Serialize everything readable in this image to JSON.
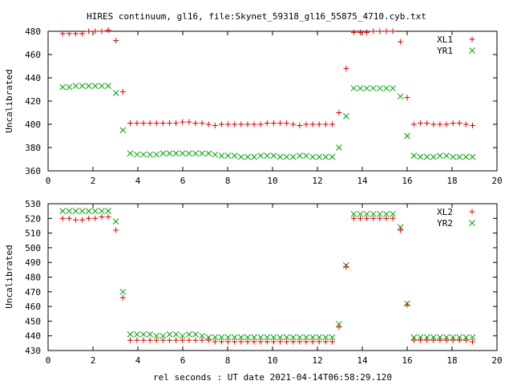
{
  "title": "HIRES continuum, gl16, file:Skynet_59318_gl16_55875_4710.cyb.txt",
  "chart_data": [
    {
      "type": "scatter",
      "title": "HIRES continuum, gl16, file:Skynet_59318_gl16_55875_4710.cyb.txt",
      "xlabel": "",
      "ylabel": "Uncalibrated",
      "xlim": [
        0,
        20
      ],
      "ylim": [
        360,
        480
      ],
      "xticks": [
        0,
        2,
        4,
        6,
        8,
        10,
        12,
        14,
        16,
        18,
        20
      ],
      "yticks": [
        360,
        380,
        400,
        420,
        440,
        460,
        480
      ],
      "grid": false,
      "legend": "top-right",
      "series": [
        {
          "name": "XL1",
          "marker": "plus",
          "color": "#dd0000",
          "x": [
            0.65,
            0.94,
            1.23,
            1.52,
            1.81,
            2.1,
            2.39,
            2.68,
            3.02,
            3.33,
            3.66,
            3.96,
            4.25,
            4.54,
            4.83,
            5.12,
            5.41,
            5.7,
            5.99,
            6.28,
            6.57,
            6.86,
            7.15,
            7.44,
            7.73,
            8.02,
            8.31,
            8.6,
            8.89,
            9.18,
            9.47,
            9.76,
            10.05,
            10.34,
            10.63,
            10.92,
            11.21,
            11.5,
            11.79,
            12.08,
            12.37,
            12.66,
            12.96,
            13.28,
            13.62,
            13.91,
            14.2,
            14.49,
            14.78,
            15.07,
            15.36,
            15.7,
            16.0,
            16.3,
            16.59,
            16.88,
            17.17,
            17.46,
            17.75,
            18.04,
            18.33,
            18.62,
            18.91
          ],
          "y": [
            478,
            478,
            478,
            478,
            480,
            480,
            480,
            481,
            472,
            428,
            401,
            401,
            401,
            401,
            401,
            401,
            401,
            401,
            402,
            402,
            401,
            401,
            400,
            399,
            400,
            400,
            400,
            400,
            400,
            400,
            400,
            401,
            401,
            401,
            401,
            400,
            399,
            400,
            400,
            400,
            400,
            400,
            410,
            448,
            479,
            479,
            479,
            480,
            480,
            480,
            480,
            471,
            423,
            400,
            401,
            401,
            400,
            400,
            400,
            401,
            401,
            400,
            399
          ]
        },
        {
          "name": "YR1",
          "marker": "cross",
          "color": "#00a000",
          "x": [
            0.65,
            0.94,
            1.23,
            1.52,
            1.81,
            2.1,
            2.39,
            2.68,
            3.02,
            3.33,
            3.66,
            3.96,
            4.25,
            4.54,
            4.83,
            5.12,
            5.41,
            5.7,
            5.99,
            6.28,
            6.57,
            6.86,
            7.15,
            7.44,
            7.73,
            8.02,
            8.31,
            8.6,
            8.89,
            9.18,
            9.47,
            9.76,
            10.05,
            10.34,
            10.63,
            10.92,
            11.21,
            11.5,
            11.79,
            12.08,
            12.37,
            12.66,
            12.96,
            13.28,
            13.62,
            13.91,
            14.2,
            14.49,
            14.78,
            15.07,
            15.36,
            15.7,
            16.0,
            16.3,
            16.59,
            16.88,
            17.17,
            17.46,
            17.75,
            18.04,
            18.33,
            18.62,
            18.91
          ],
          "y": [
            432,
            432,
            433,
            433,
            433,
            433,
            433,
            433,
            427,
            395,
            375,
            374,
            374,
            374,
            374,
            375,
            375,
            375,
            375,
            375,
            375,
            375,
            375,
            374,
            373,
            373,
            373,
            372,
            372,
            372,
            373,
            373,
            373,
            372,
            372,
            372,
            373,
            373,
            372,
            372,
            372,
            372,
            380,
            407,
            431,
            431,
            431,
            431,
            431,
            431,
            431,
            424,
            390,
            373,
            372,
            372,
            372,
            373,
            373,
            372,
            372,
            372,
            372
          ]
        }
      ]
    },
    {
      "type": "scatter",
      "title": "",
      "xlabel": "rel seconds : UT date 2021-04-14T06:58:29.120",
      "ylabel": "Uncalibrated",
      "xlim": [
        0,
        20
      ],
      "ylim": [
        430,
        530
      ],
      "xticks": [
        0,
        2,
        4,
        6,
        8,
        10,
        12,
        14,
        16,
        18,
        20
      ],
      "yticks": [
        430,
        440,
        450,
        460,
        470,
        480,
        490,
        500,
        510,
        520,
        530
      ],
      "grid": false,
      "legend": "top-right",
      "series": [
        {
          "name": "XL2",
          "marker": "plus",
          "color": "#dd0000",
          "x": [
            0.65,
            0.94,
            1.23,
            1.52,
            1.81,
            2.1,
            2.39,
            2.68,
            3.02,
            3.33,
            3.66,
            3.96,
            4.25,
            4.54,
            4.83,
            5.12,
            5.41,
            5.7,
            5.99,
            6.28,
            6.57,
            6.86,
            7.15,
            7.44,
            7.73,
            8.02,
            8.31,
            8.6,
            8.89,
            9.18,
            9.47,
            9.76,
            10.05,
            10.34,
            10.63,
            10.92,
            11.21,
            11.5,
            11.79,
            12.08,
            12.37,
            12.66,
            12.96,
            13.28,
            13.62,
            13.91,
            14.2,
            14.49,
            14.78,
            15.07,
            15.36,
            15.7,
            16.0,
            16.3,
            16.59,
            16.88,
            17.17,
            17.46,
            17.75,
            18.04,
            18.33,
            18.62,
            18.91
          ],
          "y": [
            520,
            520,
            519,
            519,
            520,
            520,
            521,
            521,
            512,
            466,
            437,
            437,
            437,
            437,
            437,
            437,
            437,
            437,
            437,
            437,
            437,
            437,
            437,
            436,
            436,
            436,
            436,
            436,
            436,
            436,
            436,
            436,
            436,
            436,
            436,
            436,
            436,
            436,
            436,
            436,
            436,
            436,
            446,
            487,
            520,
            520,
            520,
            520,
            520,
            520,
            520,
            512,
            461,
            437,
            437,
            437,
            437,
            437,
            437,
            437,
            437,
            437,
            436
          ]
        },
        {
          "name": "YR2",
          "marker": "cross",
          "color": "#00a000",
          "x": [
            0.65,
            0.94,
            1.23,
            1.52,
            1.81,
            2.1,
            2.39,
            2.68,
            3.02,
            3.33,
            3.66,
            3.96,
            4.25,
            4.54,
            4.83,
            5.12,
            5.41,
            5.7,
            5.99,
            6.28,
            6.57,
            6.86,
            7.15,
            7.44,
            7.73,
            8.02,
            8.31,
            8.6,
            8.89,
            9.18,
            9.47,
            9.76,
            10.05,
            10.34,
            10.63,
            10.92,
            11.21,
            11.5,
            11.79,
            12.08,
            12.37,
            12.66,
            12.96,
            13.28,
            13.62,
            13.91,
            14.2,
            14.49,
            14.78,
            15.07,
            15.36,
            15.7,
            16.0,
            16.3,
            16.59,
            16.88,
            17.17,
            17.46,
            17.75,
            18.04,
            18.33,
            18.62,
            18.91
          ],
          "y": [
            525,
            525,
            525,
            525,
            525,
            525,
            525,
            525,
            518,
            470,
            441,
            441,
            441,
            441,
            440,
            440,
            441,
            441,
            440,
            441,
            441,
            440,
            439,
            439,
            439,
            439,
            439,
            439,
            439,
            439,
            439,
            439,
            439,
            439,
            439,
            439,
            439,
            439,
            439,
            439,
            439,
            439,
            448,
            488,
            523,
            523,
            523,
            523,
            523,
            523,
            523,
            514,
            462,
            439,
            439,
            439,
            439,
            439,
            439,
            439,
            439,
            439,
            439
          ]
        }
      ]
    }
  ]
}
